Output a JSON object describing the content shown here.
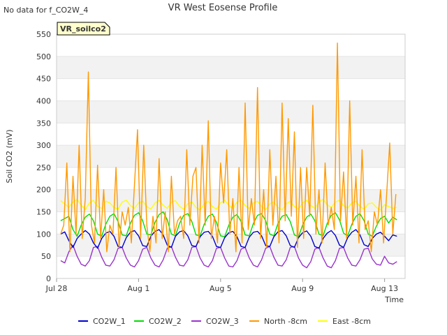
{
  "corner_note": "No data for f_CO2W_4",
  "chart_data": {
    "type": "line",
    "title": "VR West Eosense Profile",
    "badge": "VR_soilco2",
    "xlabel": "Time",
    "ylabel": "Soil CO2 (mV)",
    "ylim": [
      0,
      550
    ],
    "yticks": [
      0,
      50,
      100,
      150,
      200,
      250,
      300,
      350,
      400,
      450,
      500,
      550
    ],
    "xlim_days": [
      0,
      17
    ],
    "xticks": [
      {
        "label": "Jul 28",
        "day": 0
      },
      {
        "label": "Aug 1",
        "day": 4
      },
      {
        "label": "Aug 5",
        "day": 8
      },
      {
        "label": "Aug 9",
        "day": 12
      },
      {
        "label": "Aug 13",
        "day": 16
      }
    ],
    "grid": "horizontal bands",
    "legend_position": "bottom",
    "series": [
      {
        "name": "CO2W_1",
        "color": "#0000cc",
        "x": [
          0.2,
          0.4,
          0.6,
          0.8,
          1,
          1.2,
          1.4,
          1.6,
          1.8,
          2,
          2.2,
          2.4,
          2.6,
          2.8,
          3,
          3.2,
          3.4,
          3.6,
          3.8,
          4,
          4.2,
          4.4,
          4.6,
          4.8,
          5,
          5.2,
          5.4,
          5.6,
          5.8,
          6,
          6.2,
          6.4,
          6.6,
          6.8,
          7,
          7.2,
          7.4,
          7.6,
          7.8,
          8,
          8.2,
          8.4,
          8.6,
          8.8,
          9,
          9.2,
          9.4,
          9.6,
          9.8,
          10,
          10.2,
          10.4,
          10.6,
          10.8,
          11,
          11.2,
          11.4,
          11.6,
          11.8,
          12,
          12.2,
          12.4,
          12.6,
          12.8,
          13,
          13.2,
          13.4,
          13.6,
          13.8,
          14,
          14.2,
          14.4,
          14.6,
          14.8,
          15,
          15.2,
          15.4,
          15.6,
          15.8,
          16,
          16.2,
          16.4,
          16.6
        ],
        "y": [
          100,
          105,
          85,
          70,
          90,
          100,
          108,
          100,
          80,
          68,
          90,
          102,
          106,
          95,
          72,
          70,
          92,
          104,
          108,
          96,
          74,
          72,
          95,
          106,
          110,
          98,
          75,
          70,
          95,
          105,
          108,
          96,
          74,
          72,
          94,
          104,
          106,
          95,
          72,
          70,
          92,
          103,
          106,
          94,
          72,
          70,
          93,
          104,
          106,
          96,
          74,
          72,
          94,
          105,
          108,
          96,
          74,
          70,
          92,
          103,
          107,
          95,
          72,
          68,
          90,
          102,
          108,
          97,
          75,
          70,
          92,
          104,
          110,
          98,
          76,
          72,
          90,
          100,
          104,
          95,
          85,
          98,
          95
        ]
      },
      {
        "name": "CO2W_2",
        "color": "#00dd00",
        "x": [
          0.2,
          0.4,
          0.6,
          0.8,
          1,
          1.2,
          1.4,
          1.6,
          1.8,
          2,
          2.2,
          2.4,
          2.6,
          2.8,
          3,
          3.2,
          3.4,
          3.6,
          3.8,
          4,
          4.2,
          4.4,
          4.6,
          4.8,
          5,
          5.2,
          5.4,
          5.6,
          5.8,
          6,
          6.2,
          6.4,
          6.6,
          6.8,
          7,
          7.2,
          7.4,
          7.6,
          7.8,
          8,
          8.2,
          8.4,
          8.6,
          8.8,
          9,
          9.2,
          9.4,
          9.6,
          9.8,
          10,
          10.2,
          10.4,
          10.6,
          10.8,
          11,
          11.2,
          11.4,
          11.6,
          11.8,
          12,
          12.2,
          12.4,
          12.6,
          12.8,
          13,
          13.2,
          13.4,
          13.6,
          13.8,
          14,
          14.2,
          14.4,
          14.6,
          14.8,
          15,
          15.2,
          15.4,
          15.6,
          15.8,
          16,
          16.2,
          16.4,
          16.6
        ],
        "y": [
          130,
          135,
          140,
          110,
          95,
          120,
          138,
          145,
          130,
          100,
          95,
          122,
          140,
          146,
          128,
          98,
          96,
          124,
          142,
          148,
          130,
          100,
          98,
          126,
          144,
          150,
          132,
          100,
          96,
          124,
          142,
          146,
          128,
          98,
          96,
          122,
          140,
          145,
          126,
          96,
          94,
          120,
          138,
          144,
          128,
          98,
          96,
          124,
          142,
          146,
          130,
          100,
          96,
          124,
          140,
          144,
          128,
          98,
          94,
          120,
          138,
          145,
          130,
          100,
          96,
          124,
          142,
          148,
          132,
          102,
          96,
          122,
          140,
          146,
          130,
          100,
          95,
          118,
          135,
          140,
          125,
          138,
          132
        ]
      },
      {
        "name": "CO2W_3",
        "color": "#9933cc",
        "x": [
          0.2,
          0.4,
          0.6,
          0.8,
          1,
          1.2,
          1.4,
          1.6,
          1.8,
          2,
          2.2,
          2.4,
          2.6,
          2.8,
          3,
          3.2,
          3.4,
          3.6,
          3.8,
          4,
          4.2,
          4.4,
          4.6,
          4.8,
          5,
          5.2,
          5.4,
          5.6,
          5.8,
          6,
          6.2,
          6.4,
          6.6,
          6.8,
          7,
          7.2,
          7.4,
          7.6,
          7.8,
          8,
          8.2,
          8.4,
          8.6,
          8.8,
          9,
          9.2,
          9.4,
          9.6,
          9.8,
          10,
          10.2,
          10.4,
          10.6,
          10.8,
          11,
          11.2,
          11.4,
          11.6,
          11.8,
          12,
          12.2,
          12.4,
          12.6,
          12.8,
          13,
          13.2,
          13.4,
          13.6,
          13.8,
          14,
          14.2,
          14.4,
          14.6,
          14.8,
          15,
          15.2,
          15.4,
          15.6,
          15.8,
          16,
          16.2,
          16.4,
          16.6
        ],
        "y": [
          40,
          35,
          60,
          75,
          50,
          32,
          28,
          40,
          70,
          72,
          48,
          30,
          28,
          42,
          68,
          70,
          46,
          30,
          26,
          40,
          66,
          70,
          46,
          30,
          26,
          42,
          68,
          72,
          48,
          30,
          28,
          42,
          70,
          72,
          46,
          30,
          26,
          40,
          68,
          70,
          46,
          28,
          26,
          40,
          66,
          70,
          46,
          30,
          26,
          42,
          68,
          72,
          48,
          30,
          28,
          42,
          70,
          72,
          46,
          30,
          24,
          38,
          66,
          70,
          46,
          28,
          24,
          40,
          68,
          70,
          46,
          30,
          28,
          42,
          66,
          68,
          44,
          32,
          30,
          50,
          35,
          32,
          38
        ]
      },
      {
        "name": "North -8cm",
        "color": "#ff9900",
        "x": [
          0.2,
          0.35,
          0.5,
          0.65,
          0.8,
          0.95,
          1.1,
          1.25,
          1.4,
          1.55,
          1.7,
          1.85,
          2,
          2.15,
          2.3,
          2.45,
          2.6,
          2.75,
          2.9,
          3.05,
          3.2,
          3.35,
          3.5,
          3.65,
          3.8,
          3.95,
          4.1,
          4.25,
          4.4,
          4.55,
          4.7,
          4.85,
          5,
          5.15,
          5.3,
          5.45,
          5.6,
          5.75,
          5.9,
          6.05,
          6.2,
          6.35,
          6.5,
          6.65,
          6.8,
          6.95,
          7.1,
          7.25,
          7.4,
          7.55,
          7.7,
          7.85,
          8,
          8.15,
          8.3,
          8.45,
          8.6,
          8.75,
          8.9,
          9.05,
          9.2,
          9.35,
          9.5,
          9.65,
          9.8,
          9.95,
          10.1,
          10.25,
          10.4,
          10.55,
          10.7,
          10.85,
          11,
          11.15,
          11.3,
          11.45,
          11.6,
          11.75,
          11.9,
          12.05,
          12.2,
          12.35,
          12.5,
          12.65,
          12.8,
          12.95,
          13.1,
          13.25,
          13.4,
          13.55,
          13.7,
          13.85,
          14,
          14.15,
          14.3,
          14.45,
          14.6,
          14.75,
          14.9,
          15.05,
          15.2,
          15.35,
          15.5,
          15.65,
          15.8,
          15.95,
          16.1,
          16.25,
          16.4,
          16.55
        ],
        "y": [
          100,
          120,
          260,
          60,
          230,
          100,
          300,
          90,
          180,
          465,
          120,
          80,
          255,
          90,
          200,
          60,
          120,
          100,
          250,
          70,
          150,
          120,
          160,
          80,
          210,
          335,
          90,
          300,
          120,
          60,
          140,
          80,
          270,
          90,
          150,
          60,
          230,
          100,
          130,
          140,
          90,
          290,
          120,
          230,
          250,
          80,
          300,
          120,
          355,
          90,
          140,
          80,
          260,
          170,
          290,
          100,
          180,
          60,
          250,
          80,
          395,
          110,
          180,
          120,
          430,
          90,
          200,
          70,
          290,
          120,
          230,
          80,
          395,
          130,
          360,
          140,
          330,
          70,
          250,
          90,
          250,
          140,
          390,
          100,
          200,
          80,
          260,
          120,
          160,
          110,
          530,
          130,
          240,
          90,
          400,
          120,
          230,
          80,
          290,
          110,
          130,
          60,
          150,
          120,
          200,
          80,
          190,
          305,
          100,
          190
        ]
      },
      {
        "name": "East -8cm",
        "color": "#ffff00",
        "x": [
          0.2,
          0.4,
          0.6,
          0.8,
          1,
          1.2,
          1.4,
          1.6,
          1.8,
          2,
          2.2,
          2.4,
          2.6,
          2.8,
          3,
          3.2,
          3.4,
          3.6,
          3.8,
          4,
          4.2,
          4.4,
          4.6,
          4.8,
          5,
          5.2,
          5.4,
          5.6,
          5.8,
          6,
          6.2,
          6.4,
          6.6,
          6.8,
          7,
          7.2,
          7.4,
          7.6,
          7.8,
          8,
          8.2,
          8.4,
          8.6,
          8.8,
          9,
          9.2,
          9.4,
          9.6,
          9.8,
          10,
          10.2,
          10.4,
          10.6,
          10.8,
          11,
          11.2,
          11.4,
          11.6,
          11.8,
          12,
          12.2,
          12.4,
          12.6,
          12.8,
          13,
          13.2,
          13.4,
          13.6,
          13.8,
          14,
          14.2,
          14.4,
          14.6,
          14.8,
          15,
          15.2,
          15.4,
          15.6,
          15.8,
          16,
          16.2,
          16.4,
          16.6
        ],
        "y": [
          175,
          168,
          160,
          172,
          178,
          165,
          155,
          170,
          176,
          162,
          158,
          174,
          170,
          160,
          156,
          172,
          176,
          164,
          158,
          170,
          174,
          162,
          156,
          170,
          176,
          165,
          158,
          172,
          175,
          162,
          156,
          168,
          172,
          160,
          154,
          168,
          174,
          162,
          156,
          170,
          176,
          164,
          158,
          172,
          176,
          164,
          158,
          170,
          174,
          162,
          155,
          168,
          172,
          160,
          154,
          168,
          174,
          162,
          156,
          170,
          176,
          164,
          158,
          172,
          178,
          166,
          160,
          172,
          176,
          164,
          158,
          170,
          174,
          162,
          156,
          168,
          170,
          160,
          154,
          166,
          162,
          158,
          160
        ]
      }
    ]
  }
}
